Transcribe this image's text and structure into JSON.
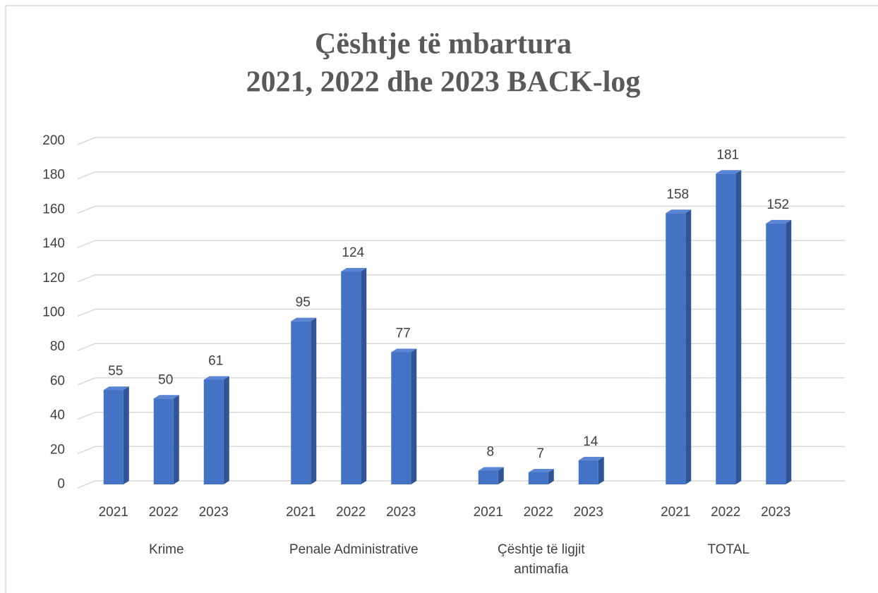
{
  "chart_data": {
    "type": "bar",
    "title": [
      "Çështje të mbartura",
      "2021, 2022 dhe 2023 BACK-log"
    ],
    "color": "#4472c4",
    "groups": [
      {
        "name": "Krime",
        "categories": [
          "2021",
          "2022",
          "2023"
        ],
        "values": [
          55,
          50,
          61
        ]
      },
      {
        "name": "Penale Administrative",
        "categories": [
          "2021",
          "2022",
          "2023"
        ],
        "values": [
          95,
          124,
          77
        ]
      },
      {
        "name": "Çështje të ligjit antimafia",
        "categories": [
          "2021",
          "2022",
          "2023"
        ],
        "values": [
          8,
          7,
          14
        ]
      },
      {
        "name": "TOTAL",
        "categories": [
          "2021",
          "2022",
          "2023"
        ],
        "values": [
          158,
          181,
          152
        ]
      }
    ],
    "ylim": [
      0,
      200
    ],
    "yticks": [
      0,
      20,
      40,
      60,
      80,
      100,
      120,
      140,
      160,
      180,
      200
    ],
    "grid": true
  }
}
